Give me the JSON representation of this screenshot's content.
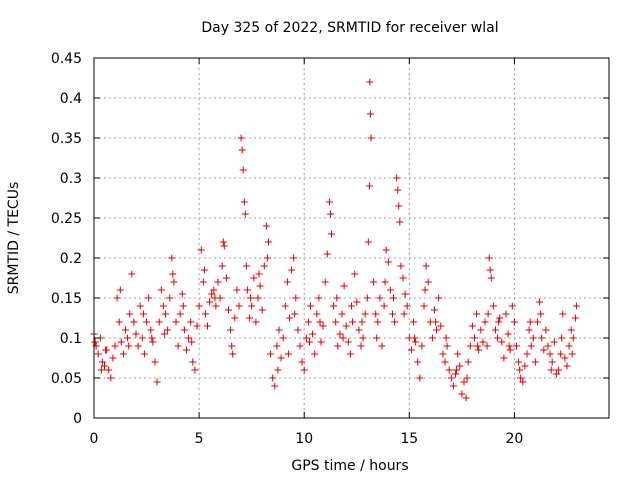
{
  "chart_data": {
    "type": "scatter",
    "title": "Day 325 of 2022, SRMTID for receiver wlal",
    "xlabel": "GPS time / hours",
    "ylabel": "SRMTID / TECUs",
    "xlim": [
      0,
      24.5
    ],
    "ylim": [
      0,
      0.45
    ],
    "xticks": [
      0,
      5,
      10,
      15,
      20
    ],
    "yticks": [
      0,
      0.05,
      0.1,
      0.15,
      0.2,
      0.25,
      0.3,
      0.35,
      0.4,
      0.45
    ],
    "xtick_labels": [
      "0",
      "5",
      "10",
      "15",
      "20"
    ],
    "ytick_labels": [
      "0",
      "0.05",
      "0.1",
      "0.15",
      "0.2",
      "0.25",
      "0.3",
      "0.35",
      "0.4",
      "0.45"
    ],
    "grid": true,
    "marker": "+",
    "color": "#e00000",
    "series": [
      {
        "name": "SRMTID",
        "points": [
          [
            0.0,
            0.105
          ],
          [
            0.1,
            0.09
          ],
          [
            0.2,
            0.08
          ],
          [
            0.3,
            0.1
          ],
          [
            0.4,
            0.07
          ],
          [
            0.5,
            0.065
          ],
          [
            0.6,
            0.085
          ],
          [
            0.7,
            0.06
          ],
          [
            0.8,
            0.05
          ],
          [
            0.9,
            0.075
          ],
          [
            1.0,
            0.09
          ],
          [
            1.1,
            0.15
          ],
          [
            1.2,
            0.12
          ],
          [
            1.3,
            0.095
          ],
          [
            1.4,
            0.08
          ],
          [
            1.5,
            0.11
          ],
          [
            1.6,
            0.1
          ],
          [
            1.7,
            0.13
          ],
          [
            1.8,
            0.18
          ],
          [
            1.9,
            0.12
          ],
          [
            2.0,
            0.105
          ],
          [
            2.1,
            0.09
          ],
          [
            2.2,
            0.14
          ],
          [
            2.3,
            0.1
          ],
          [
            2.4,
            0.08
          ],
          [
            2.5,
            0.12
          ],
          [
            2.6,
            0.15
          ],
          [
            2.7,
            0.11
          ],
          [
            2.8,
            0.095
          ],
          [
            2.9,
            0.07
          ],
          [
            3.0,
            0.045
          ],
          [
            3.1,
            0.12
          ],
          [
            3.2,
            0.16
          ],
          [
            3.3,
            0.14
          ],
          [
            3.4,
            0.13
          ],
          [
            3.5,
            0.11
          ],
          [
            3.6,
            0.15
          ],
          [
            3.7,
            0.2
          ],
          [
            3.8,
            0.17
          ],
          [
            3.9,
            0.12
          ],
          [
            4.0,
            0.09
          ],
          [
            4.1,
            0.13
          ],
          [
            4.2,
            0.155
          ],
          [
            4.3,
            0.11
          ],
          [
            4.4,
            0.085
          ],
          [
            4.5,
            0.1
          ],
          [
            4.6,
            0.12
          ],
          [
            4.7,
            0.07
          ],
          [
            4.8,
            0.06
          ],
          [
            4.9,
            0.115
          ],
          [
            5.0,
            0.14
          ],
          [
            5.1,
            0.21
          ],
          [
            5.2,
            0.17
          ],
          [
            5.3,
            0.13
          ],
          [
            5.4,
            0.115
          ],
          [
            5.5,
            0.145
          ],
          [
            5.6,
            0.155
          ],
          [
            5.7,
            0.16
          ],
          [
            5.8,
            0.14
          ],
          [
            5.9,
            0.17
          ],
          [
            6.0,
            0.15
          ],
          [
            6.1,
            0.19
          ],
          [
            6.2,
            0.215
          ],
          [
            6.3,
            0.175
          ],
          [
            6.4,
            0.135
          ],
          [
            6.5,
            0.11
          ],
          [
            6.6,
            0.08
          ],
          [
            6.7,
            0.125
          ],
          [
            6.8,
            0.16
          ],
          [
            6.9,
            0.14
          ],
          [
            7.0,
            0.35
          ],
          [
            7.05,
            0.335
          ],
          [
            7.1,
            0.31
          ],
          [
            7.15,
            0.27
          ],
          [
            7.2,
            0.255
          ],
          [
            7.25,
            0.19
          ],
          [
            7.3,
            0.16
          ],
          [
            7.4,
            0.125
          ],
          [
            7.5,
            0.14
          ],
          [
            7.6,
            0.175
          ],
          [
            7.7,
            0.12
          ],
          [
            7.8,
            0.15
          ],
          [
            7.9,
            0.165
          ],
          [
            8.0,
            0.135
          ],
          [
            8.1,
            0.19
          ],
          [
            8.2,
            0.24
          ],
          [
            8.3,
            0.22
          ],
          [
            8.4,
            0.08
          ],
          [
            8.5,
            0.05
          ],
          [
            8.6,
            0.04
          ],
          [
            8.7,
            0.09
          ],
          [
            8.8,
            0.11
          ],
          [
            8.9,
            0.075
          ],
          [
            9.0,
            0.1
          ],
          [
            9.1,
            0.14
          ],
          [
            9.2,
            0.17
          ],
          [
            9.3,
            0.125
          ],
          [
            9.4,
            0.185
          ],
          [
            9.5,
            0.2
          ],
          [
            9.6,
            0.15
          ],
          [
            9.7,
            0.11
          ],
          [
            9.8,
            0.09
          ],
          [
            9.9,
            0.07
          ],
          [
            10.0,
            0.06
          ],
          [
            10.1,
            0.1
          ],
          [
            10.2,
            0.12
          ],
          [
            10.3,
            0.14
          ],
          [
            10.4,
            0.105
          ],
          [
            10.5,
            0.08
          ],
          [
            10.6,
            0.13
          ],
          [
            10.7,
            0.15
          ],
          [
            10.8,
            0.095
          ],
          [
            10.9,
            0.115
          ],
          [
            11.0,
            0.17
          ],
          [
            11.1,
            0.205
          ],
          [
            11.2,
            0.27
          ],
          [
            11.25,
            0.255
          ],
          [
            11.3,
            0.23
          ],
          [
            11.4,
            0.14
          ],
          [
            11.5,
            0.12
          ],
          [
            11.6,
            0.09
          ],
          [
            11.7,
            0.105
          ],
          [
            11.8,
            0.13
          ],
          [
            11.9,
            0.165
          ],
          [
            12.0,
            0.115
          ],
          [
            12.1,
            0.095
          ],
          [
            12.2,
            0.08
          ],
          [
            12.3,
            0.12
          ],
          [
            12.4,
            0.18
          ],
          [
            12.5,
            0.145
          ],
          [
            12.6,
            0.11
          ],
          [
            12.7,
            0.09
          ],
          [
            12.8,
            0.1
          ],
          [
            12.9,
            0.13
          ],
          [
            13.0,
            0.15
          ],
          [
            13.05,
            0.22
          ],
          [
            13.1,
            0.29
          ],
          [
            13.12,
            0.42
          ],
          [
            13.15,
            0.38
          ],
          [
            13.18,
            0.35
          ],
          [
            13.3,
            0.17
          ],
          [
            13.4,
            0.13
          ],
          [
            13.5,
            0.12
          ],
          [
            13.6,
            0.15
          ],
          [
            13.7,
            0.09
          ],
          [
            13.8,
            0.14
          ],
          [
            13.9,
            0.21
          ],
          [
            14.0,
            0.195
          ],
          [
            14.1,
            0.16
          ],
          [
            14.2,
            0.13
          ],
          [
            14.3,
            0.12
          ],
          [
            14.4,
            0.3
          ],
          [
            14.45,
            0.285
          ],
          [
            14.5,
            0.265
          ],
          [
            14.55,
            0.245
          ],
          [
            14.6,
            0.19
          ],
          [
            14.7,
            0.175
          ],
          [
            14.8,
            0.155
          ],
          [
            14.9,
            0.14
          ],
          [
            15.0,
            0.1
          ],
          [
            15.1,
            0.085
          ],
          [
            15.2,
            0.12
          ],
          [
            15.3,
            0.095
          ],
          [
            15.4,
            0.07
          ],
          [
            15.5,
            0.05
          ],
          [
            15.6,
            0.09
          ],
          [
            15.7,
            0.14
          ],
          [
            15.8,
            0.19
          ],
          [
            15.9,
            0.17
          ],
          [
            16.0,
            0.12
          ],
          [
            16.1,
            0.1
          ],
          [
            16.2,
            0.135
          ],
          [
            16.3,
            0.11
          ],
          [
            16.4,
            0.15
          ],
          [
            16.5,
            0.115
          ],
          [
            16.6,
            0.08
          ],
          [
            16.7,
            0.07
          ],
          [
            16.8,
            0.09
          ],
          [
            16.9,
            0.06
          ],
          [
            17.0,
            0.05
          ],
          [
            17.1,
            0.04
          ],
          [
            17.2,
            0.055
          ],
          [
            17.3,
            0.08
          ],
          [
            17.4,
            0.065
          ],
          [
            17.5,
            0.03
          ],
          [
            17.6,
            0.045
          ],
          [
            17.7,
            0.025
          ],
          [
            17.8,
            0.07
          ],
          [
            17.9,
            0.09
          ],
          [
            18.0,
            0.115
          ],
          [
            18.1,
            0.1
          ],
          [
            18.2,
            0.13
          ],
          [
            18.3,
            0.085
          ],
          [
            18.4,
            0.11
          ],
          [
            18.5,
            0.095
          ],
          [
            18.6,
            0.12
          ],
          [
            18.7,
            0.09
          ],
          [
            18.8,
            0.2
          ],
          [
            18.85,
            0.185
          ],
          [
            18.9,
            0.175
          ],
          [
            19.0,
            0.14
          ],
          [
            19.1,
            0.11
          ],
          [
            19.2,
            0.1
          ],
          [
            19.3,
            0.125
          ],
          [
            19.4,
            0.095
          ],
          [
            19.5,
            0.075
          ],
          [
            19.6,
            0.13
          ],
          [
            19.7,
            0.105
          ],
          [
            19.8,
            0.085
          ],
          [
            19.9,
            0.14
          ],
          [
            20.0,
            0.12
          ],
          [
            20.1,
            0.09
          ],
          [
            20.2,
            0.07
          ],
          [
            20.3,
            0.05
          ],
          [
            20.4,
            0.045
          ],
          [
            20.5,
            0.065
          ],
          [
            20.6,
            0.08
          ],
          [
            20.7,
            0.11
          ],
          [
            20.8,
            0.09
          ],
          [
            20.9,
            0.1
          ],
          [
            21.0,
            0.07
          ],
          [
            21.1,
            0.12
          ],
          [
            21.2,
            0.145
          ],
          [
            21.3,
            0.1
          ],
          [
            21.4,
            0.085
          ],
          [
            21.5,
            0.11
          ],
          [
            21.6,
            0.09
          ],
          [
            21.7,
            0.08
          ],
          [
            21.8,
            0.07
          ],
          [
            21.9,
            0.095
          ],
          [
            22.0,
            0.055
          ],
          [
            22.1,
            0.06
          ],
          [
            22.2,
            0.08
          ],
          [
            22.3,
            0.13
          ],
          [
            22.4,
            0.075
          ],
          [
            22.5,
            0.065
          ],
          [
            22.6,
            0.09
          ],
          [
            22.7,
            0.11
          ],
          [
            22.8,
            0.1
          ],
          [
            22.9,
            0.125
          ],
          [
            22.95,
            0.14
          ],
          [
            0.05,
            0.095
          ],
          [
            0.35,
            0.06
          ],
          [
            0.55,
            0.085
          ],
          [
            1.25,
            0.16
          ],
          [
            1.65,
            0.09
          ],
          [
            2.35,
            0.13
          ],
          [
            2.75,
            0.1
          ],
          [
            3.35,
            0.105
          ],
          [
            3.75,
            0.18
          ],
          [
            4.25,
            0.14
          ],
          [
            4.65,
            0.095
          ],
          [
            5.25,
            0.185
          ],
          [
            5.75,
            0.15
          ],
          [
            6.15,
            0.22
          ],
          [
            6.55,
            0.09
          ],
          [
            7.45,
            0.15
          ],
          [
            7.85,
            0.18
          ],
          [
            8.25,
            0.2
          ],
          [
            8.75,
            0.06
          ],
          [
            9.25,
            0.08
          ],
          [
            9.55,
            0.13
          ],
          [
            10.25,
            0.095
          ],
          [
            10.75,
            0.12
          ],
          [
            11.55,
            0.15
          ],
          [
            11.85,
            0.1
          ],
          [
            12.25,
            0.14
          ],
          [
            12.75,
            0.12
          ],
          [
            13.45,
            0.1
          ],
          [
            13.85,
            0.17
          ],
          [
            14.25,
            0.15
          ],
          [
            14.75,
            0.13
          ],
          [
            15.25,
            0.1
          ],
          [
            15.75,
            0.16
          ],
          [
            16.25,
            0.12
          ],
          [
            16.75,
            0.1
          ],
          [
            17.25,
            0.06
          ],
          [
            17.75,
            0.05
          ],
          [
            18.25,
            0.09
          ],
          [
            18.75,
            0.13
          ],
          [
            19.25,
            0.12
          ],
          [
            19.75,
            0.09
          ],
          [
            20.25,
            0.06
          ],
          [
            20.75,
            0.12
          ],
          [
            21.25,
            0.13
          ],
          [
            21.75,
            0.06
          ],
          [
            22.25,
            0.1
          ],
          [
            22.75,
            0.08
          ]
        ]
      }
    ]
  }
}
